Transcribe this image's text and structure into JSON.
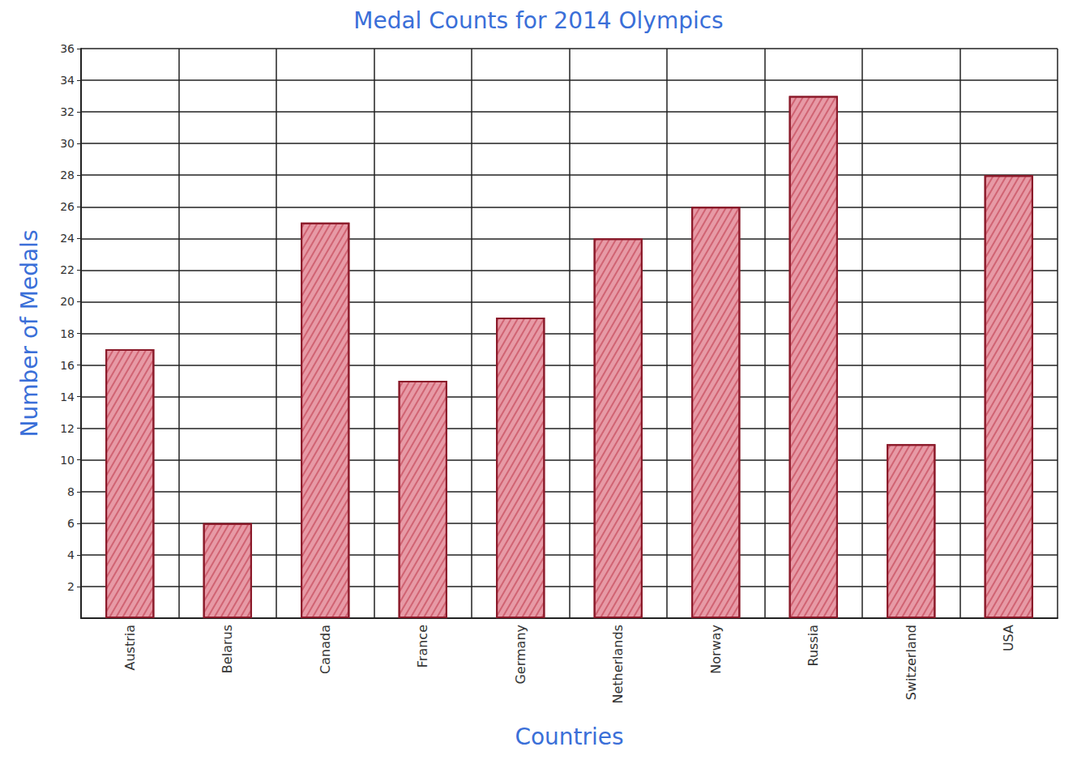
{
  "chart_data": {
    "type": "bar",
    "title": "Medal Counts for 2014 Olympics",
    "categories": [
      "Austria",
      "Belarus",
      "Canada",
      "France",
      "Germany",
      "Netherlands",
      "Norway",
      "Russia",
      "Switzerland",
      "USA"
    ],
    "values": [
      17,
      6,
      25,
      15,
      19,
      24,
      26,
      33,
      11,
      28
    ],
    "color": "#e79aa6",
    "x_label": "Countries",
    "y_label": "Number of Medals",
    "ylim": [
      0,
      36
    ],
    "yticks": [
      2,
      4,
      6,
      8,
      10,
      12,
      14,
      16,
      18,
      20,
      22,
      24,
      26,
      28,
      30,
      32,
      34,
      36
    ],
    "grid": true
  }
}
